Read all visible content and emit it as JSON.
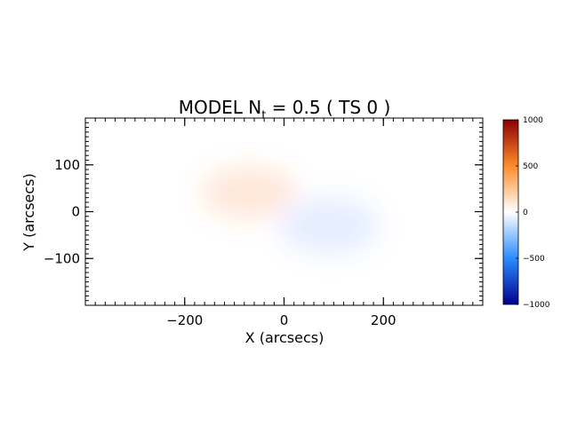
{
  "chart_data": {
    "type": "heatmap",
    "title": "MODEL N",
    "title_sub": "t",
    "title_rest": " = 0.5 ( TS 0 )",
    "xlabel": "X (arcsecs)",
    "ylabel": "Y (arcsecs)",
    "xlim": [
      -400,
      400
    ],
    "ylim": [
      -200,
      200
    ],
    "xticks": [
      -200,
      0,
      200
    ],
    "xtick_labels": [
      "−200",
      "0",
      "200"
    ],
    "yticks": [
      -100,
      0,
      100
    ],
    "ytick_labels": [
      "−100",
      "0",
      "100"
    ],
    "colorbar": {
      "range": [
        -1000,
        1000
      ],
      "ticks": [
        1000,
        500,
        0,
        -500,
        -1000
      ],
      "tick_labels": [
        "1000",
        "500",
        "0",
        "−500",
        "−1000"
      ]
    },
    "features": [
      {
        "name": "positive-blob",
        "x": -70,
        "y": 40,
        "sigma_x": 95,
        "sigma_y": 55,
        "peak": 120,
        "color": "#ff7a2e"
      },
      {
        "name": "negative-blob",
        "x": 90,
        "y": -30,
        "sigma_x": 100,
        "sigma_y": 60,
        "peak": -100,
        "color": "#4a90ff"
      }
    ],
    "grid": false
  },
  "colors": {
    "cbar_top": "#8b0000",
    "cbar_upper": "#ff8c2a",
    "cbar_mid": "#ffffff",
    "cbar_lower": "#2a8cff",
    "cbar_bottom": "#00008b"
  }
}
